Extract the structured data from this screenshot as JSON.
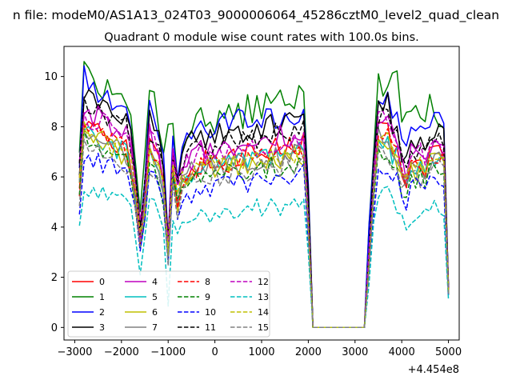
{
  "chart_data": {
    "type": "line",
    "suptitle": "n file: modeM0/AS1A13_024T03_9000006064_45286cztM0_level2_quad_clean",
    "title": "Quadrant 0 module wise count rates with 100.0s bins.",
    "xlabel": "",
    "ylabel": "",
    "offset_text": "+4.454e8",
    "xlim": [
      -3230,
      5230
    ],
    "ylim": [
      -0.5,
      11.2
    ],
    "xticks": [
      -3000,
      -2000,
      -1000,
      0,
      1000,
      2000,
      3000,
      4000,
      5000
    ],
    "xtick_labels": [
      "−3000",
      "−2000",
      "−1000",
      "0",
      "1000",
      "2000",
      "3000",
      "4000",
      "5000"
    ],
    "yticks": [
      0,
      2,
      4,
      6,
      8,
      10
    ],
    "ytick_labels": [
      "0",
      "2",
      "4",
      "6",
      "8",
      "10"
    ],
    "grid": false,
    "legend_position": "lower-left",
    "legend_columns": 4,
    "x_segment1": [
      -2900,
      2000,
      100
    ],
    "x_segment2": [
      3200,
      5000,
      100
    ],
    "series": [
      {
        "name": "0",
        "color": "#ff0000",
        "dash": "solid",
        "level": 7.2,
        "amp": 0.5,
        "last": 1.5
      },
      {
        "name": "1",
        "color": "#008000",
        "dash": "solid",
        "level": 9.0,
        "amp": 0.7,
        "last": 1.6
      },
      {
        "name": "2",
        "color": "#0000ff",
        "dash": "solid",
        "level": 8.6,
        "amp": 0.55,
        "last": 1.6
      },
      {
        "name": "3",
        "color": "#000000",
        "dash": "solid",
        "level": 8.2,
        "amp": 0.5,
        "last": 1.6
      },
      {
        "name": "4",
        "color": "#bf00bf",
        "dash": "solid",
        "level": 7.7,
        "amp": 0.5,
        "last": 1.5
      },
      {
        "name": "5",
        "color": "#00bfbf",
        "dash": "solid",
        "level": 6.9,
        "amp": 0.45,
        "last": 1.3
      },
      {
        "name": "6",
        "color": "#bfbf00",
        "dash": "solid",
        "level": 6.8,
        "amp": 0.45,
        "last": 1.4
      },
      {
        "name": "7",
        "color": "#808080",
        "dash": "solid",
        "level": 6.9,
        "amp": 0.45,
        "last": 1.4
      },
      {
        "name": "8",
        "color": "#ff0000",
        "dash": "dashed",
        "level": 7.0,
        "amp": 0.45,
        "last": 1.4
      },
      {
        "name": "9",
        "color": "#008000",
        "dash": "dashed",
        "level": 6.5,
        "amp": 0.45,
        "last": 1.3
      },
      {
        "name": "10",
        "color": "#0000ff",
        "dash": "dashed",
        "level": 6.0,
        "amp": 0.45,
        "last": 1.2
      },
      {
        "name": "11",
        "color": "#000000",
        "dash": "dashed",
        "level": 7.8,
        "amp": 0.5,
        "last": 1.5
      },
      {
        "name": "12",
        "color": "#bf00bf",
        "dash": "dashed",
        "level": 7.5,
        "amp": 0.5,
        "last": 1.5
      },
      {
        "name": "13",
        "color": "#00bfbf",
        "dash": "dashed",
        "level": 4.9,
        "amp": 0.4,
        "last": 1.1
      },
      {
        "name": "14",
        "color": "#bfbf00",
        "dash": "dashed",
        "level": 6.9,
        "amp": 0.45,
        "last": 1.4
      },
      {
        "name": "15",
        "color": "#808080",
        "dash": "dashed",
        "level": 6.5,
        "amp": 0.45,
        "last": 1.3
      }
    ]
  }
}
